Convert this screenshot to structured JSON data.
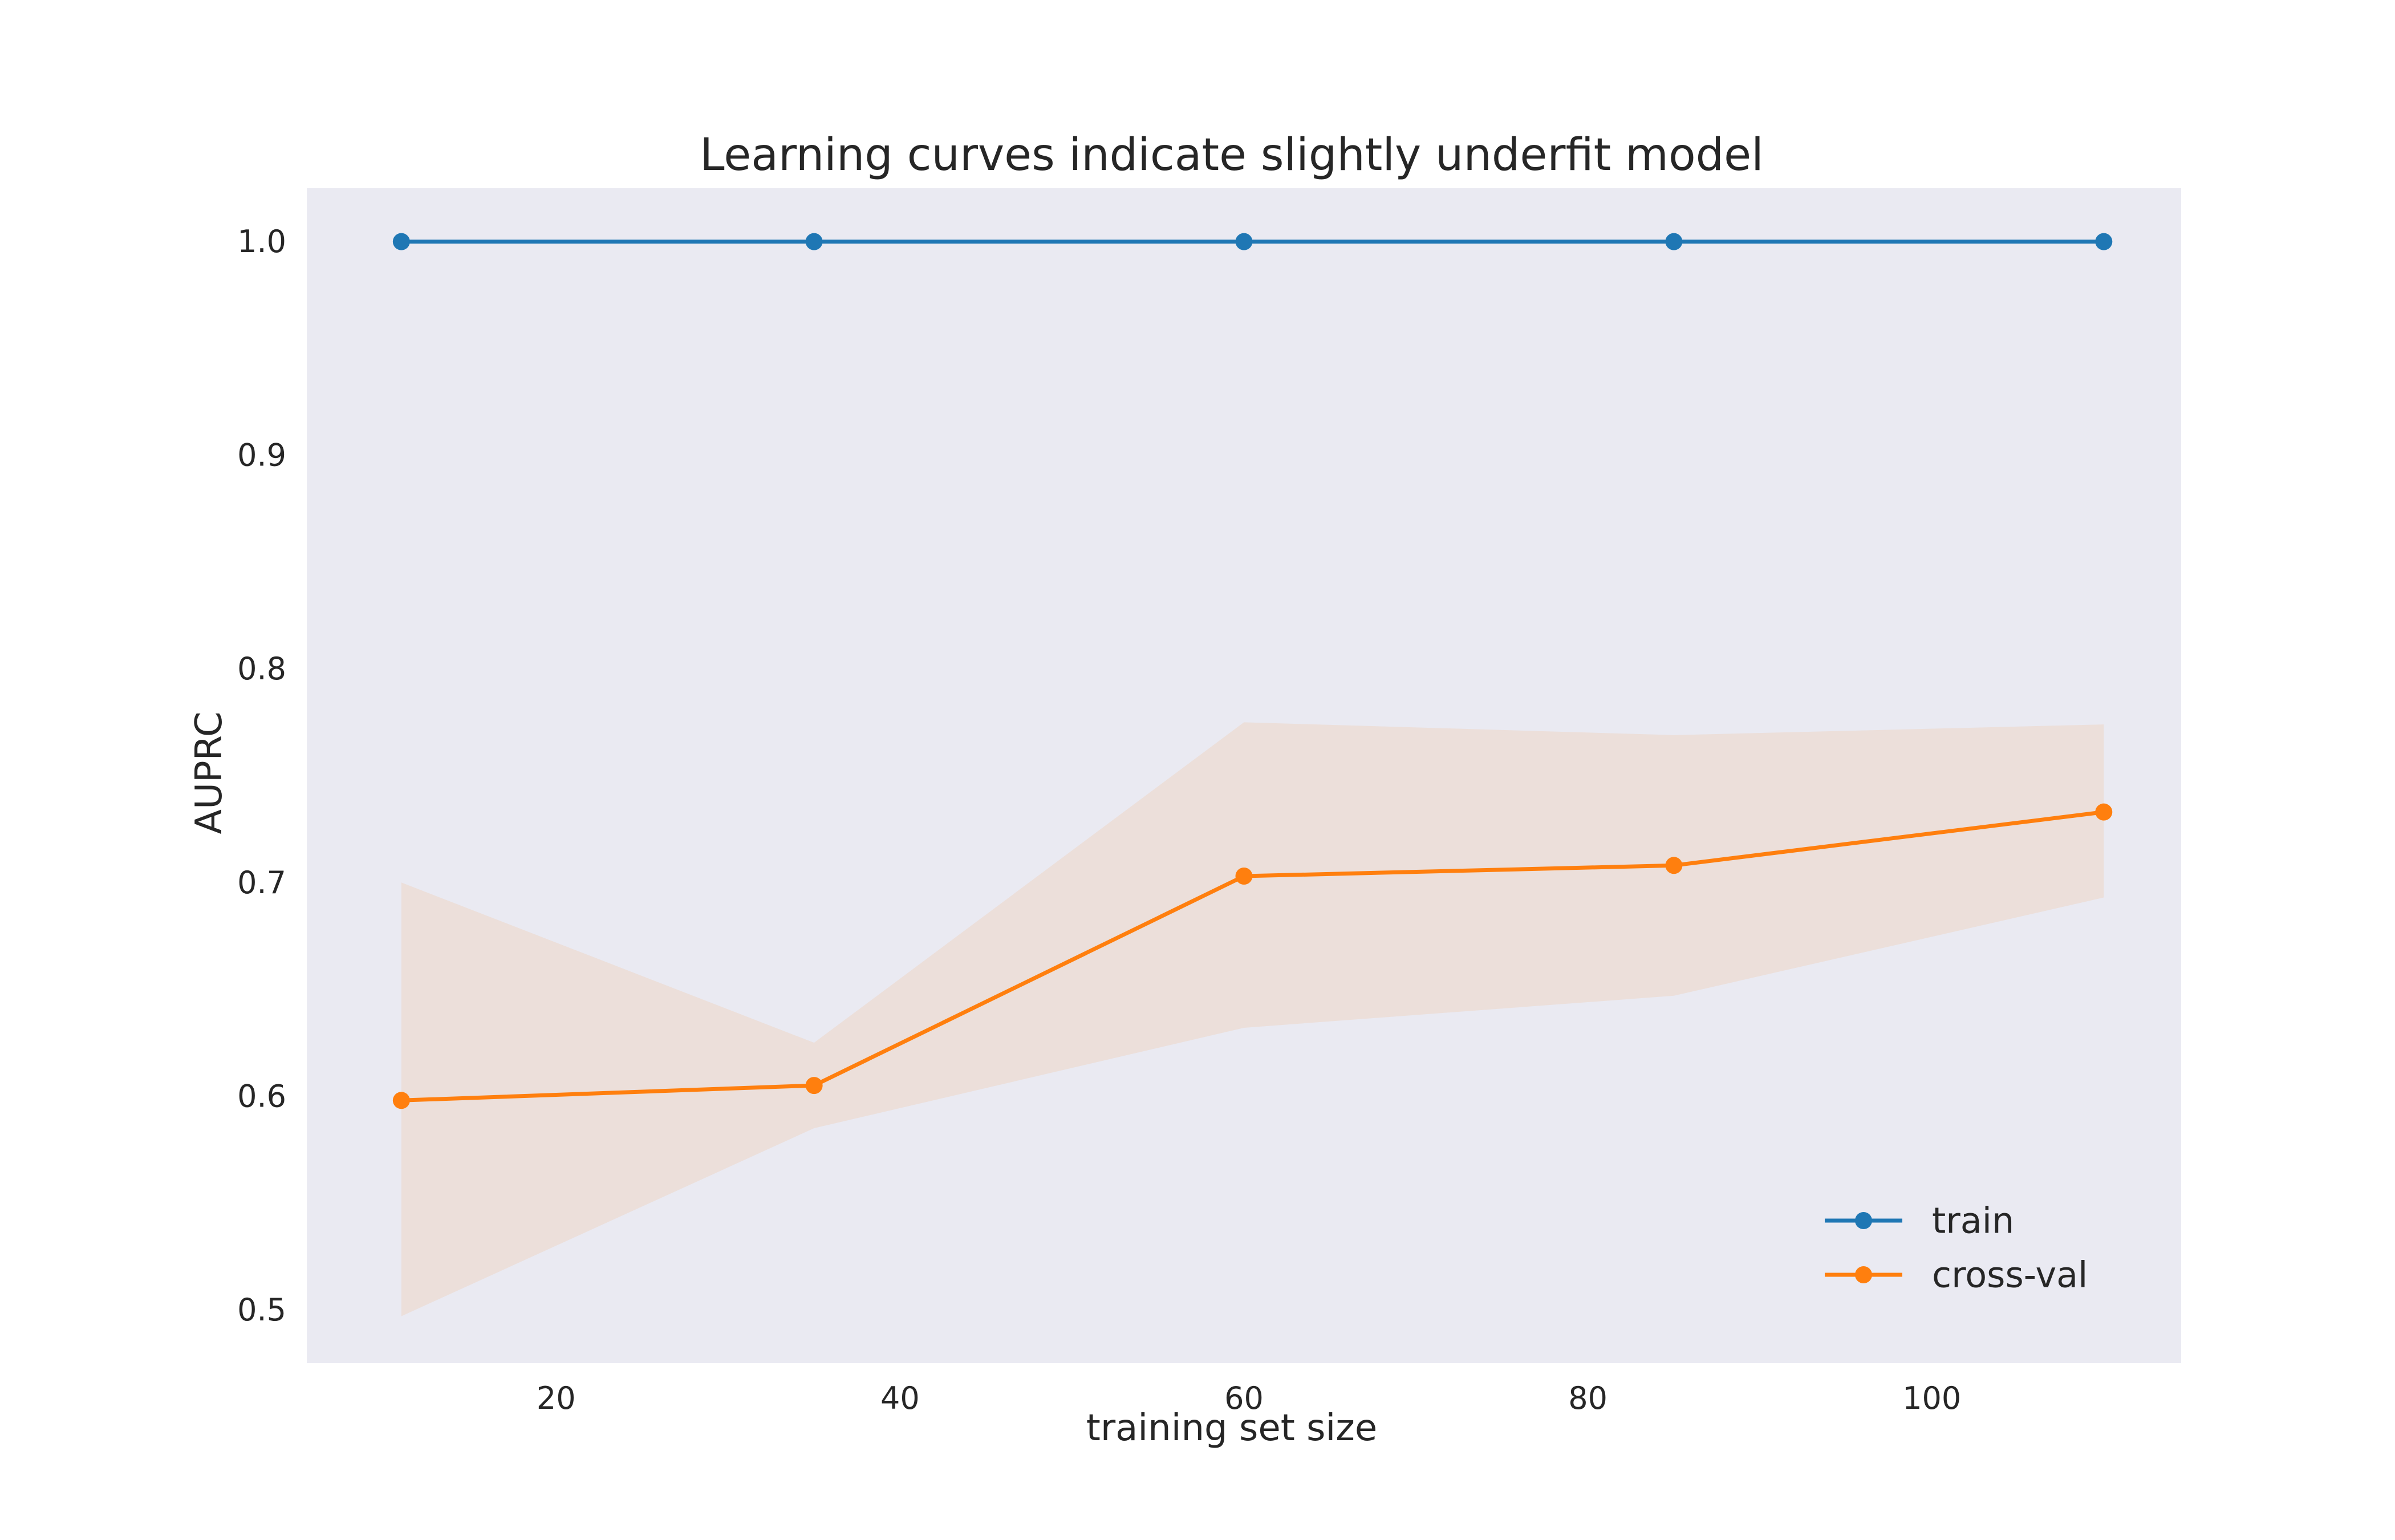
{
  "chart_data": {
    "type": "line",
    "title": "Learning curves indicate slightly underfit model",
    "xlabel": "training set size",
    "ylabel": "AUPRC",
    "xlim": [
      5.5,
      114.5
    ],
    "ylim": [
      0.475,
      1.025
    ],
    "xticks": [
      20,
      40,
      60,
      80,
      100
    ],
    "yticks": [
      0.5,
      0.6,
      0.7,
      0.8,
      0.9,
      1.0
    ],
    "ytick_labels": [
      "0.5",
      "0.6",
      "0.7",
      "0.8",
      "0.9",
      "1.0"
    ],
    "grid": false,
    "background_color": "#eaeaf2",
    "legend_position": "lower-right",
    "series": [
      {
        "name": "train",
        "color": "#1f77b4",
        "marker": "circle",
        "x": [
          11,
          35,
          60,
          85,
          110
        ],
        "y": [
          1.0,
          1.0,
          1.0,
          1.0,
          1.0
        ]
      },
      {
        "name": "cross-val",
        "color": "#ff7f0e",
        "marker": "circle",
        "x": [
          11,
          35,
          60,
          85,
          110
        ],
        "y": [
          0.598,
          0.605,
          0.703,
          0.708,
          0.733
        ],
        "band_lower": [
          0.497,
          0.585,
          0.632,
          0.647,
          0.693
        ],
        "band_upper": [
          0.7,
          0.625,
          0.775,
          0.769,
          0.774
        ],
        "band_color": "#ff7f0e"
      }
    ]
  }
}
